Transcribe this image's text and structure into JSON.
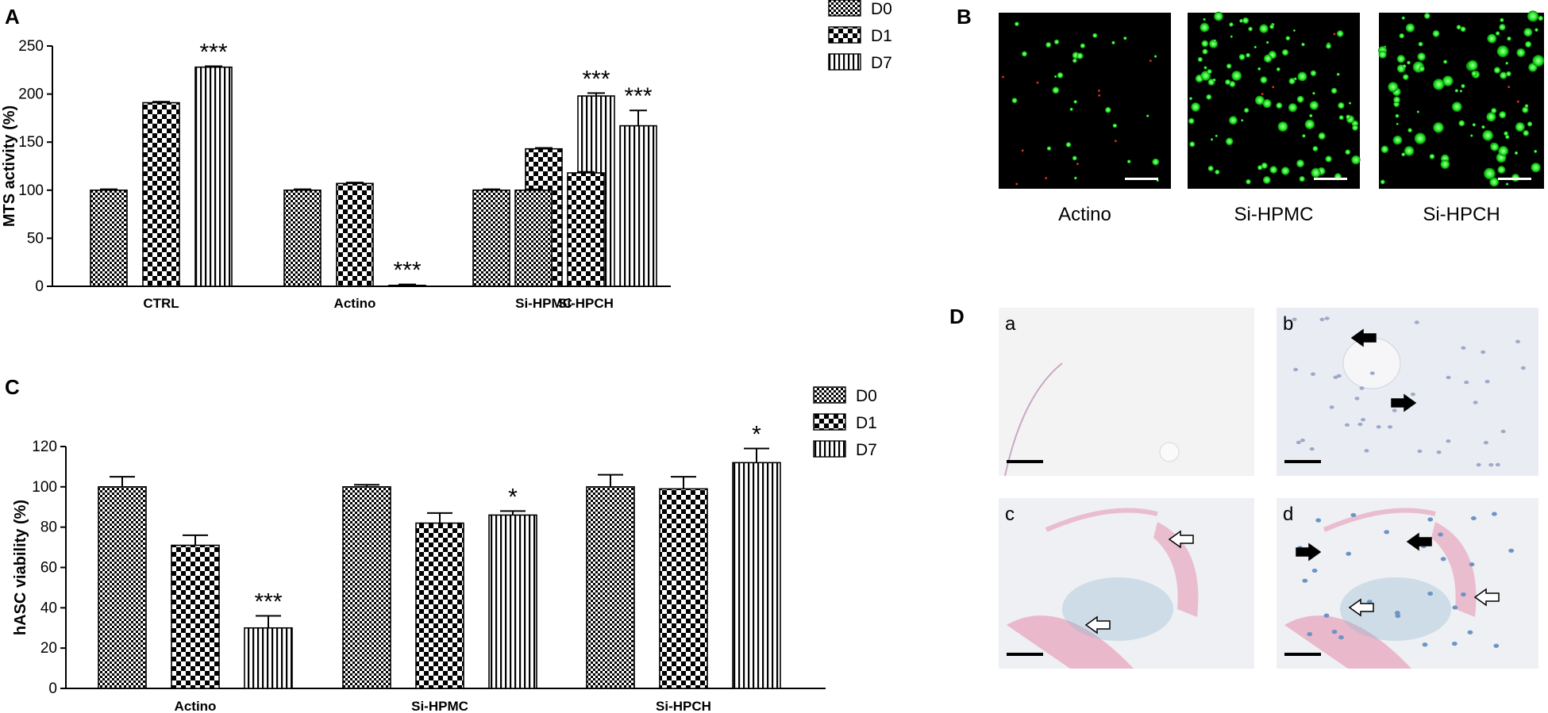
{
  "chart_data": [
    {
      "panel": "A",
      "type": "bar",
      "ylabel": "MTS activity (%)",
      "ylim": [
        0,
        250
      ],
      "yticks": [
        0,
        50,
        100,
        150,
        200,
        250
      ],
      "categories": [
        "CTRL",
        "Actino",
        "Si-HPMC",
        "Si-HPCH"
      ],
      "series": [
        {
          "name": "D0",
          "pattern": "fine-check",
          "values": [
            100,
            100,
            100,
            100
          ],
          "errors": [
            1,
            1,
            1,
            1
          ]
        },
        {
          "name": "D1",
          "pattern": "checker",
          "values": [
            191,
            107,
            143,
            118
          ],
          "errors": [
            1,
            1,
            1,
            1
          ]
        },
        {
          "name": "D7",
          "pattern": "vertical",
          "values": [
            228,
            1,
            198,
            167
          ],
          "errors": [
            1,
            1,
            3,
            16
          ]
        }
      ],
      "annotations": [
        {
          "category": 0,
          "series": 2,
          "text": "***"
        },
        {
          "category": 1,
          "series": 2,
          "text": "***"
        },
        {
          "category": 2,
          "series": 2,
          "text": "***"
        },
        {
          "category": 3,
          "series": 2,
          "text": "***"
        }
      ],
      "legend": "top-right"
    },
    {
      "panel": "C",
      "type": "bar",
      "ylabel": "hASC viability (%)",
      "ylim": [
        0,
        120
      ],
      "yticks": [
        0,
        20,
        40,
        60,
        80,
        100,
        120
      ],
      "categories": [
        "Actino",
        "Si-HPMC",
        "Si-HPCH"
      ],
      "series": [
        {
          "name": "D0",
          "pattern": "fine-check",
          "values": [
            100,
            100,
            100
          ],
          "errors": [
            5,
            1,
            6
          ]
        },
        {
          "name": "D1",
          "pattern": "checker",
          "values": [
            71,
            82,
            99
          ],
          "errors": [
            5,
            5,
            6
          ]
        },
        {
          "name": "D7",
          "pattern": "vertical",
          "values": [
            30,
            86,
            112
          ],
          "errors": [
            6,
            2,
            7
          ]
        }
      ],
      "annotations": [
        {
          "category": 0,
          "series": 2,
          "text": "***"
        },
        {
          "category": 1,
          "series": 2,
          "text": "*"
        },
        {
          "category": 2,
          "series": 2,
          "text": "*"
        }
      ],
      "legend": "top-right"
    }
  ],
  "panels": {
    "A": "A",
    "B": "B",
    "C": "C",
    "D": "D"
  },
  "panel_b": {
    "labels": [
      "Actino",
      "Si-HPMC",
      "Si-HPCH"
    ]
  },
  "panel_d": {
    "labels": [
      "a",
      "b",
      "c",
      "d"
    ]
  },
  "colors": {
    "bar_ink": "#000000",
    "fluor_bg": "#000000",
    "fluor_green": "#22ee22",
    "fluor_red": "#dd3322",
    "histo_bg": "#f2f1f3",
    "histo_pink": "#e8a6bd",
    "histo_blue": "#8fb6d1"
  }
}
